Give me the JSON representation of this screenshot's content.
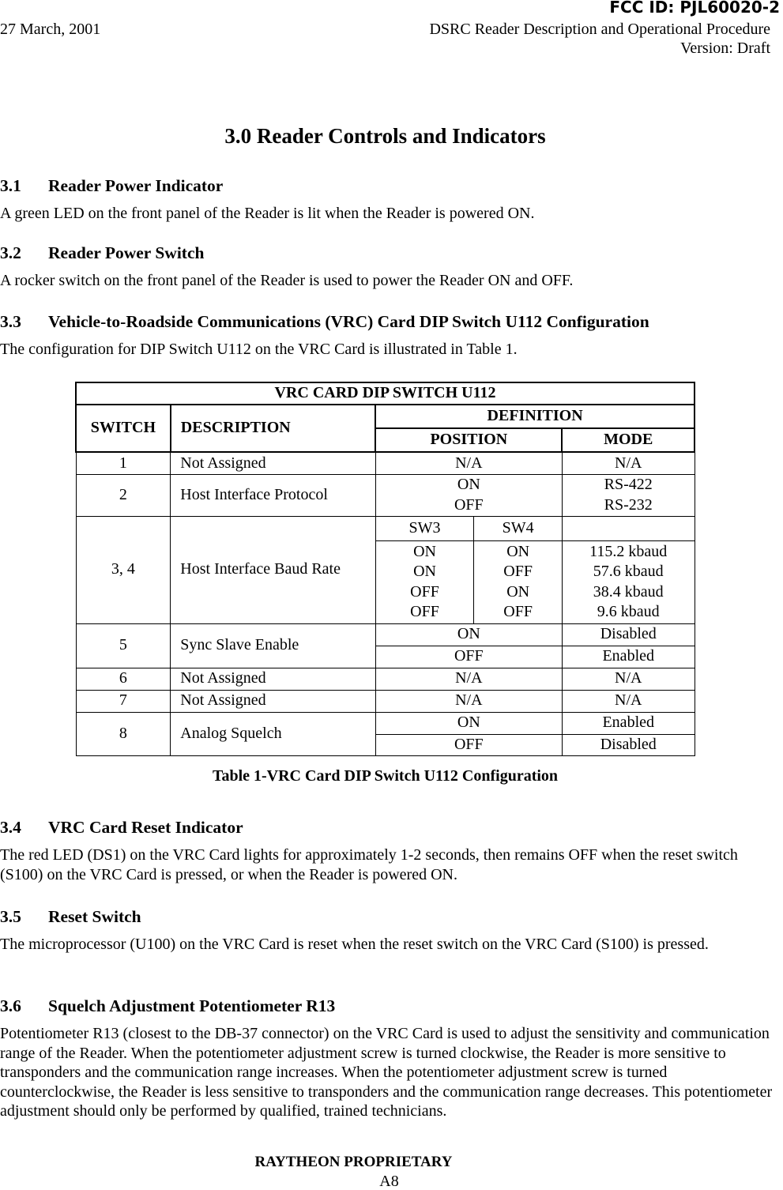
{
  "header": {
    "fcc_id": "FCC ID: PJL60020-2",
    "date": "27 March, 2001",
    "doc_title": "DSRC Reader Description and Operational Procedure",
    "version": "Version: Draft"
  },
  "chapter_title": "3.0 Reader Controls and Indicators",
  "sections": [
    {
      "num": "3.1",
      "title": "Reader Power Indicator",
      "body": "A green LED on the front panel of the Reader is lit when the Reader is powered ON."
    },
    {
      "num": "3.2",
      "title": "Reader Power Switch",
      "body": "A rocker switch on the front panel of the Reader is used to power the Reader ON and OFF."
    },
    {
      "num": "3.3",
      "title": "Vehicle-to-Roadside Communications (VRC) Card DIP Switch U112 Configuration",
      "body": "The configuration for DIP Switch U112 on the VRC Card is illustrated in Table 1."
    },
    {
      "num": "3.4",
      "title": "VRC Card Reset Indicator",
      "body": "The red LED (DS1) on the VRC Card lights for approximately 1-2 seconds, then remains OFF when the reset switch (S100) on the VRC Card is pressed, or when the Reader is powered ON."
    },
    {
      "num": "3.5",
      "title": "Reset Switch",
      "body": "The microprocessor (U100) on the VRC Card is reset when the reset switch on the VRC Card (S100) is pressed."
    },
    {
      "num": "3.6",
      "title": "Squelch Adjustment Potentiometer R13",
      "body": "Potentiometer R13 (closest to the DB-37 connector) on the VRC Card is used to adjust the sensitivity and communication range of the Reader.  When the potentiometer adjustment screw is turned clockwise, the Reader is more sensitive to transponders and the communication range increases.  When the potentiometer adjustment screw is turned counterclockwise, the Reader is less sensitive to transponders and the communication range decreases.  This potentiometer adjustment should only be performed by qualified, trained technicians."
    }
  ],
  "table": {
    "title": "VRC CARD DIP SWITCH U112",
    "headers": {
      "switch": "SWITCH",
      "description": "DESCRIPTION",
      "definition": "DEFINITION",
      "position": "POSITION",
      "mode": "MODE"
    },
    "r1": {
      "sw": "1",
      "desc": "Not Assigned",
      "pos": "N/A",
      "mode": "N/A"
    },
    "r2": {
      "sw": "2",
      "desc": "Host Interface Protocol",
      "pos": [
        "ON",
        "OFF"
      ],
      "mode": [
        "RS-422",
        "RS-232"
      ]
    },
    "r34": {
      "sw": "3, 4",
      "desc": "Host Interface Baud Rate",
      "sw3_label": "SW3",
      "sw4_label": "SW4",
      "sw3": [
        "ON",
        "ON",
        "OFF",
        "OFF"
      ],
      "sw4": [
        "ON",
        "OFF",
        "ON",
        "OFF"
      ],
      "mode": [
        "115.2 kbaud",
        "57.6 kbaud",
        "38.4 kbaud",
        "9.6 kbaud"
      ]
    },
    "r5": {
      "sw": "5",
      "desc": "Sync Slave Enable",
      "pos": [
        "ON",
        "OFF"
      ],
      "mode": [
        "Disabled",
        "Enabled"
      ]
    },
    "r6": {
      "sw": "6",
      "desc": "Not Assigned",
      "pos": "N/A",
      "mode": "N/A"
    },
    "r7": {
      "sw": "7",
      "desc": "Not Assigned",
      "pos": "N/A",
      "mode": "N/A"
    },
    "r8": {
      "sw": "8",
      "desc": "Analog Squelch",
      "pos": [
        "ON",
        "OFF"
      ],
      "mode": [
        "Enabled",
        "Disabled"
      ]
    },
    "caption": "Table 1-VRC Card DIP Switch U112 Configuration"
  },
  "footer": {
    "proprietary": "RAYTHEON PROPRIETARY",
    "page": "A8"
  }
}
